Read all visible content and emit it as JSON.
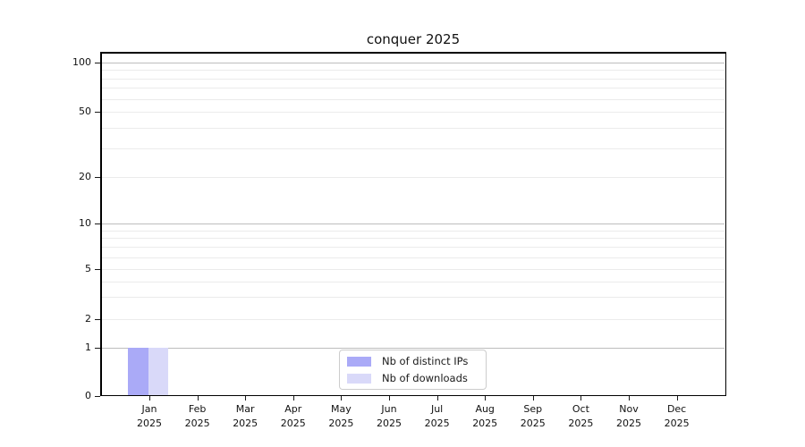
{
  "chart_data": {
    "type": "bar",
    "title": "conquer 2025",
    "categories": [
      "Jan",
      "Feb",
      "Mar",
      "Apr",
      "May",
      "Jun",
      "Jul",
      "Aug",
      "Sep",
      "Oct",
      "Nov",
      "Dec"
    ],
    "year_label": "2025",
    "series": [
      {
        "name": "Nb of distinct IPs",
        "color": "#aaaaf7",
        "values": [
          1,
          0,
          0,
          0,
          0,
          0,
          0,
          0,
          0,
          0,
          0,
          0
        ]
      },
      {
        "name": "Nb of downloads",
        "color": "#d9d9f9",
        "values": [
          1,
          0,
          0,
          0,
          0,
          0,
          0,
          0,
          0,
          0,
          0,
          0
        ]
      }
    ],
    "yscale": "log",
    "ylim": [
      0,
      100
    ],
    "yticks_labeled": [
      0,
      1,
      2,
      5,
      10,
      20,
      50,
      100
    ],
    "ytick_labels": [
      "0",
      "1",
      "2",
      "5",
      "10",
      "20",
      "50",
      "100"
    ],
    "grid_major_values": [
      1,
      10,
      100
    ],
    "grid_minor_values": [
      2,
      3,
      4,
      5,
      6,
      7,
      8,
      9,
      20,
      30,
      40,
      50,
      60,
      70,
      80,
      90
    ],
    "legend_position": "lower center inside plot",
    "grid": "on"
  },
  "colors": {
    "bar_distinct_ips": "#aaaaf7",
    "bar_downloads": "#d9d9f9",
    "grid_major": "#bdbdbd",
    "grid_minor": "#ebebeb",
    "axis": "#000000",
    "text": "#111111",
    "legend_border": "#cccccc"
  }
}
